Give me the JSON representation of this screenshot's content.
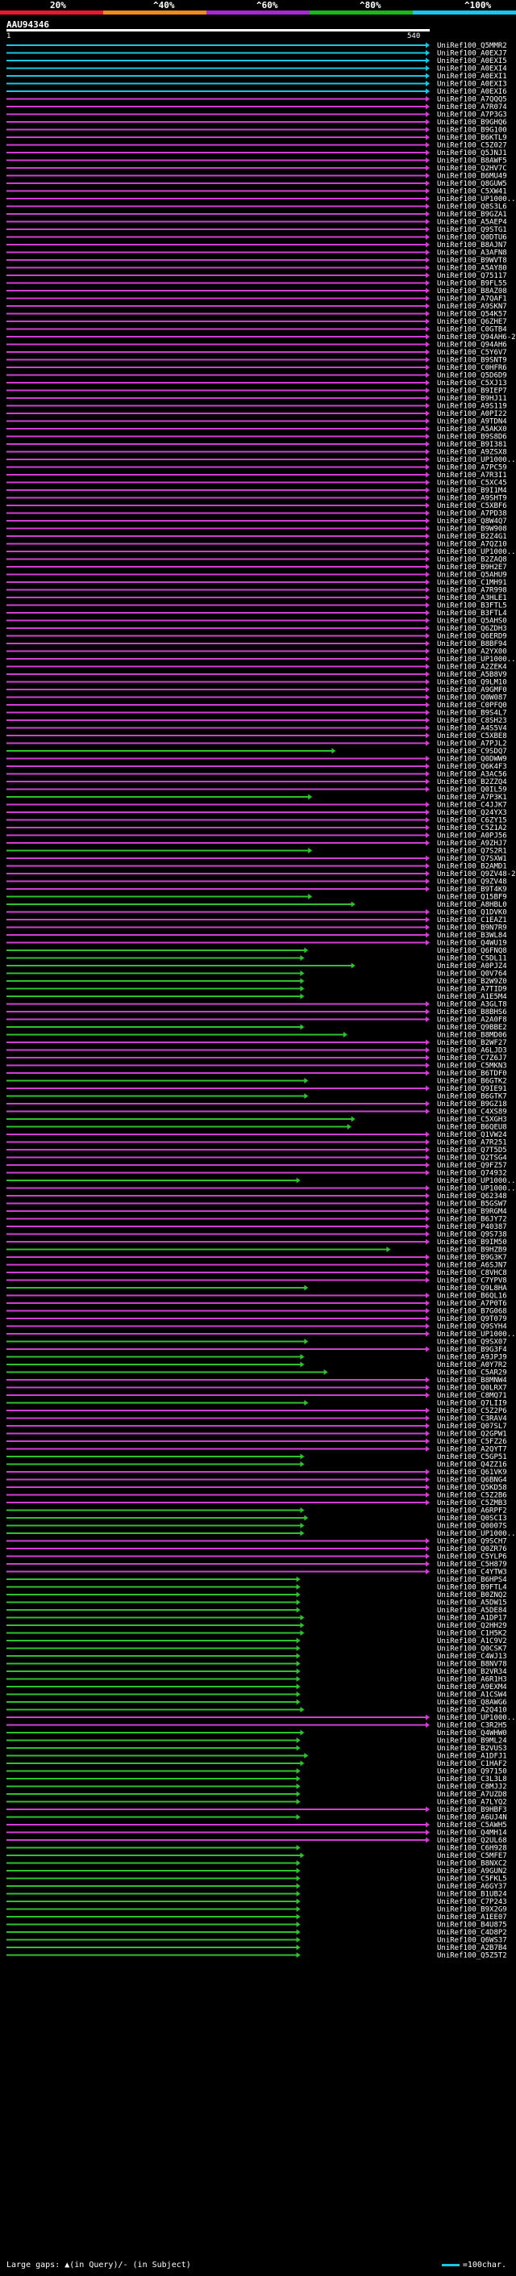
{
  "scale": {
    "labels": [
      "20%",
      "^40%",
      "^60%",
      "^80%",
      "^100%"
    ],
    "colors": [
      "#e8192c",
      "#f08a1e",
      "#a42bd4",
      "#18b818",
      "#18c8e8"
    ]
  },
  "query": {
    "title": "AAU94346",
    "start": "1",
    "end": "540"
  },
  "colors": {
    "cyan": "#18c8e0",
    "magenta": "#d040d0",
    "green": "#30c030"
  },
  "hits": [
    [
      "UniRef100_Q5MMR2",
      "c",
      540
    ],
    [
      "UniRef100_A0EXJ7",
      "c",
      540
    ],
    [
      "UniRef100_A0EXI5",
      "c",
      540
    ],
    [
      "UniRef100_A0EXI4",
      "c",
      540
    ],
    [
      "UniRef100_A0EXI1",
      "c",
      540
    ],
    [
      "UniRef100_A0EXI3",
      "c",
      540
    ],
    [
      "UniRef100_A0EXI6",
      "c",
      540
    ],
    [
      "UniRef100_A7QQQ5",
      "m",
      540
    ],
    [
      "UniRef100_A7R074",
      "m",
      540
    ],
    [
      "UniRef100_A7P3G3",
      "m",
      540
    ],
    [
      "UniRef100_B9GHQ6",
      "m",
      540
    ],
    [
      "UniRef100_B9G100",
      "m",
      540
    ],
    [
      "UniRef100_B6KTL9",
      "m",
      540
    ],
    [
      "UniRef100_C5Z027",
      "m",
      540
    ],
    [
      "UniRef100_Q5JNJ1",
      "m",
      540
    ],
    [
      "UniRef100_B8AWF5",
      "m",
      540
    ],
    [
      "UniRef100_Q2HV7C",
      "m",
      540
    ],
    [
      "UniRef100_B6MU49",
      "m",
      540
    ],
    [
      "UniRef100_Q8GUW5",
      "m",
      540
    ],
    [
      "UniRef100_C5XW41",
      "m",
      540
    ],
    [
      "UniRef100_UP1000...",
      "m",
      540
    ],
    [
      "UniRef100_Q8S3L6",
      "m",
      540
    ],
    [
      "UniRef100_B9GZA1",
      "m",
      540
    ],
    [
      "UniRef100_A5AEP4",
      "m",
      540
    ],
    [
      "UniRef100_Q9STG1",
      "m",
      540
    ],
    [
      "UniRef100_Q0DTU6",
      "m",
      540
    ],
    [
      "UniRef100_B8AJN7",
      "m",
      540
    ],
    [
      "UniRef100_A3AFN8",
      "m",
      540
    ],
    [
      "UniRef100_B9WVT8",
      "m",
      540
    ],
    [
      "UniRef100_A5AY80",
      "m",
      540
    ],
    [
      "UniRef100_Q75117",
      "m",
      540
    ],
    [
      "UniRef100_B9FL55",
      "m",
      540
    ],
    [
      "UniRef100_B8AZ08",
      "m",
      540
    ],
    [
      "UniRef100_A7QAF1",
      "m",
      540
    ],
    [
      "UniRef100_A9SKN7",
      "m",
      540
    ],
    [
      "UniRef100_Q54K57",
      "m",
      540
    ],
    [
      "UniRef100_Q6ZHE7",
      "m",
      540
    ],
    [
      "UniRef100_C0GTB4",
      "m",
      540
    ],
    [
      "UniRef100_Q94AH6-2",
      "m",
      540
    ],
    [
      "UniRef100_Q94AH6",
      "m",
      540
    ],
    [
      "UniRef100_C5Y6V7",
      "m",
      540
    ],
    [
      "UniRef100_B9SNT9",
      "m",
      540
    ],
    [
      "UniRef100_C0HFR6",
      "m",
      540
    ],
    [
      "UniRef100_Q5D6D9",
      "m",
      540
    ],
    [
      "UniRef100_C5XJ13",
      "m",
      540
    ],
    [
      "UniRef100_B9IEP7",
      "m",
      540
    ],
    [
      "UniRef100_B9HJ11",
      "m",
      540
    ],
    [
      "UniRef100_A9S119",
      "m",
      540
    ],
    [
      "UniRef100_A0PI22",
      "m",
      540
    ],
    [
      "UniRef100_A9TDN4",
      "m",
      540
    ],
    [
      "UniRef100_A5AKX0",
      "m",
      540
    ],
    [
      "UniRef100_B9S8D6",
      "m",
      540
    ],
    [
      "UniRef100_B9I381",
      "m",
      540
    ],
    [
      "UniRef100_A9ZSX8",
      "m",
      540
    ],
    [
      "UniRef100_UP1000...",
      "m",
      540
    ],
    [
      "UniRef100_A7PC59",
      "m",
      540
    ],
    [
      "UniRef100_A7R3I1",
      "m",
      540
    ],
    [
      "UniRef100_C5XC45",
      "m",
      540
    ],
    [
      "UniRef100_B9I1M4",
      "m",
      540
    ],
    [
      "UniRef100_A9SHT9",
      "m",
      540
    ],
    [
      "UniRef100_C5XBF6",
      "m",
      540
    ],
    [
      "UniRef100_A7PD38",
      "m",
      540
    ],
    [
      "UniRef100_Q8W4Q7",
      "m",
      540
    ],
    [
      "UniRef100_B9W908",
      "m",
      540
    ],
    [
      "UniRef100_B2Z4G1",
      "m",
      540
    ],
    [
      "UniRef100_A7QZ10",
      "m",
      540
    ],
    [
      "UniRef100_UP1000...",
      "m",
      540
    ],
    [
      "UniRef100_B2ZAQ8",
      "m",
      540
    ],
    [
      "UniRef100_B9H2E7",
      "m",
      540
    ],
    [
      "UniRef100_Q5AHU9",
      "m",
      540
    ],
    [
      "UniRef100_C1MH91",
      "m",
      540
    ],
    [
      "UniRef100_A7R998",
      "m",
      540
    ],
    [
      "UniRef100_A3HLE1",
      "m",
      540
    ],
    [
      "UniRef100_B3FTL5",
      "m",
      540
    ],
    [
      "UniRef100_B3FTL4",
      "m",
      540
    ],
    [
      "UniRef100_Q5AHS0",
      "m",
      540
    ],
    [
      "UniRef100_Q6ZDH3",
      "m",
      540
    ],
    [
      "UniRef100_Q6ERD9",
      "m",
      540
    ],
    [
      "UniRef100_B8BF94",
      "m",
      540
    ],
    [
      "UniRef100_A2YX00",
      "m",
      540
    ],
    [
      "UniRef100_UP1000...",
      "m",
      540
    ],
    [
      "UniRef100_A2ZEK4",
      "m",
      540
    ],
    [
      "UniRef100_A5B8V9",
      "m",
      540
    ],
    [
      "UniRef100_Q9LM10",
      "m",
      540
    ],
    [
      "UniRef100_A9GMF0",
      "m",
      540
    ],
    [
      "UniRef100_Q0W087",
      "m",
      540
    ],
    [
      "UniRef100_C0PFQ0",
      "m",
      540
    ],
    [
      "UniRef100_B9S4L7",
      "m",
      540
    ],
    [
      "UniRef100_C8SH23",
      "m",
      540
    ],
    [
      "UniRef100_A4S5V4",
      "m",
      540
    ],
    [
      "UniRef100_C5XBE8",
      "m",
      540
    ],
    [
      "UniRef100_A7PJL2",
      "m",
      540
    ],
    [
      "UniRef100_C9SDQ7",
      "g",
      420
    ],
    [
      "UniRef100_Q0DWW9",
      "m",
      540
    ],
    [
      "UniRef100_Q6K4F3",
      "m",
      540
    ],
    [
      "UniRef100_A3AC56",
      "m",
      540
    ],
    [
      "UniRef100_B2ZZQ4",
      "m",
      540
    ],
    [
      "UniRef100_Q0IL59",
      "m",
      540
    ],
    [
      "UniRef100_A7P3K1",
      "g",
      390
    ],
    [
      "UniRef100_C4JJK7",
      "m",
      540
    ],
    [
      "UniRef100_Q24YX3",
      "m",
      540
    ],
    [
      "UniRef100_C6ZY15",
      "m",
      540
    ],
    [
      "UniRef100_C5Z1A2",
      "m",
      540
    ],
    [
      "UniRef100_A0PJ56",
      "m",
      540
    ],
    [
      "UniRef100_A9ZHJ7",
      "m",
      540
    ],
    [
      "UniRef100_Q7S2R1",
      "g",
      390
    ],
    [
      "UniRef100_Q7SXW1",
      "m",
      540
    ],
    [
      "UniRef100_B2AMD1",
      "m",
      540
    ],
    [
      "UniRef100_Q9ZV48-2",
      "m",
      540
    ],
    [
      "UniRef100_Q9ZV48",
      "m",
      540
    ],
    [
      "UniRef100_B9T4K9",
      "m",
      540
    ],
    [
      "UniRef100_Q15BF9",
      "g",
      390
    ],
    [
      "UniRef100_A8HBL0",
      "g",
      445
    ],
    [
      "UniRef100_Q1DVK0",
      "m",
      540
    ],
    [
      "UniRef100_C1EAZ1",
      "m",
      540
    ],
    [
      "UniRef100_B9N7R9",
      "m",
      540
    ],
    [
      "UniRef100_B3WL84",
      "m",
      540
    ],
    [
      "UniRef100_Q4WU19",
      "m",
      540
    ],
    [
      "UniRef100_Q6FNQ8",
      "g",
      385
    ],
    [
      "UniRef100_C5DL11",
      "g",
      380
    ],
    [
      "UniRef100_A0PJZ4",
      "g",
      445
    ],
    [
      "UniRef100_Q0V764",
      "g",
      380
    ],
    [
      "UniRef100_B2W9Z0",
      "g",
      380
    ],
    [
      "UniRef100_A7TID9",
      "g",
      380
    ],
    [
      "UniRef100_A1E5M4",
      "g",
      380
    ],
    [
      "UniRef100_A3GLT8",
      "m",
      540
    ],
    [
      "UniRef100_B8BHS6",
      "m",
      540
    ],
    [
      "UniRef100_A2A0F8",
      "m",
      540
    ],
    [
      "UniRef100_Q9BBE2",
      "g",
      380
    ],
    [
      "UniRef100_B8MD06",
      "g",
      435
    ],
    [
      "UniRef100_B2WF27",
      "m",
      540
    ],
    [
      "UniRef100_A6LJD3",
      "m",
      540
    ],
    [
      "UniRef100_C7Z6J7",
      "m",
      540
    ],
    [
      "UniRef100_C5MKN3",
      "m",
      540
    ],
    [
      "UniRef100_B6TDF0",
      "m",
      540
    ],
    [
      "UniRef100_B6GTK2",
      "g",
      385
    ],
    [
      "UniRef100_Q9IE91",
      "m",
      540
    ],
    [
      "UniRef100_B6GTK7",
      "g",
      385
    ],
    [
      "UniRef100_B9GZ18",
      "m",
      540
    ],
    [
      "UniRef100_C4XS89",
      "m",
      540
    ],
    [
      "UniRef100_C5XGH3",
      "g",
      445
    ],
    [
      "UniRef100_B6QEU8",
      "g",
      440
    ],
    [
      "UniRef100_Q1VW24",
      "m",
      540
    ],
    [
      "UniRef100_A7R251",
      "m",
      540
    ],
    [
      "UniRef100_Q7T5D5",
      "m",
      540
    ],
    [
      "UniRef100_Q2TSG4",
      "m",
      540
    ],
    [
      "UniRef100_Q9FZ57",
      "m",
      540
    ],
    [
      "UniRef100_Q74932",
      "m",
      540
    ],
    [
      "UniRef100_UP1000...",
      "g",
      375
    ],
    [
      "UniRef100_UP1000...",
      "m",
      540
    ],
    [
      "UniRef100_Q62348",
      "m",
      540
    ],
    [
      "UniRef100_B5GSW7",
      "m",
      540
    ],
    [
      "UniRef100_B9RGM4",
      "m",
      540
    ],
    [
      "UniRef100_B6JY72",
      "m",
      540
    ],
    [
      "UniRef100_P40387",
      "m",
      540
    ],
    [
      "UniRef100_Q9S738",
      "m",
      540
    ],
    [
      "UniRef100_B9IM50",
      "m",
      540
    ],
    [
      "UniRef100_B9HZB9",
      "g",
      490
    ],
    [
      "UniRef100_B9G3K7",
      "m",
      540
    ],
    [
      "UniRef100_A6SJN7",
      "m",
      540
    ],
    [
      "UniRef100_C8VHC8",
      "m",
      540
    ],
    [
      "UniRef100_C7YPV8",
      "m",
      540
    ],
    [
      "UniRef100_Q9L8HA",
      "g",
      385
    ],
    [
      "UniRef100_B6QL16",
      "m",
      540
    ],
    [
      "UniRef100_A7P0T6",
      "m",
      540
    ],
    [
      "UniRef100_B7G068",
      "m",
      540
    ],
    [
      "UniRef100_Q9T079",
      "m",
      540
    ],
    [
      "UniRef100_Q9SYH4",
      "m",
      540
    ],
    [
      "UniRef100_UP1000...",
      "m",
      540
    ],
    [
      "UniRef100_Q9SX07",
      "g",
      385
    ],
    [
      "UniRef100_B9G3F4",
      "m",
      540
    ],
    [
      "UniRef100_A9JPJ9",
      "g",
      380
    ],
    [
      "UniRef100_A0Y7R2",
      "g",
      380
    ],
    [
      "UniRef100_C5AR29",
      "g",
      410
    ],
    [
      "UniRef100_B8MNW4",
      "m",
      540
    ],
    [
      "UniRef100_Q0LRX7",
      "m",
      540
    ],
    [
      "UniRef100_C8MQ71",
      "m",
      540
    ],
    [
      "UniRef100_Q7LII9",
      "g",
      385
    ],
    [
      "UniRef100_C5Z2P6",
      "m",
      540
    ],
    [
      "UniRef100_C3RAV4",
      "m",
      540
    ],
    [
      "UniRef100_Q07SL7",
      "m",
      540
    ],
    [
      "UniRef100_Q2GPW1",
      "m",
      540
    ],
    [
      "UniRef100_C5FZ26",
      "m",
      540
    ],
    [
      "UniRef100_A2QYT7",
      "m",
      540
    ],
    [
      "UniRef100_C5GP51",
      "g",
      380
    ],
    [
      "UniRef100_Q4ZZ16",
      "g",
      380
    ],
    [
      "UniRef100_Q61VK9",
      "m",
      540
    ],
    [
      "UniRef100_Q6BNG4",
      "m",
      540
    ],
    [
      "UniRef100_Q5KD58",
      "m",
      540
    ],
    [
      "UniRef100_C5Z2B6",
      "m",
      540
    ],
    [
      "UniRef100_C5ZMB3",
      "m",
      540
    ],
    [
      "UniRef100_A6RPF2",
      "g",
      380
    ],
    [
      "UniRef100_Q0SCI3",
      "g",
      385
    ],
    [
      "UniRef100_Q0007S",
      "g",
      380
    ],
    [
      "UniRef100_UP1000...",
      "g",
      380
    ],
    [
      "UniRef100_Q9SCH7",
      "m",
      540
    ],
    [
      "UniRef100_Q0ZR76",
      "m",
      540
    ],
    [
      "UniRef100_C5YLP6",
      "m",
      540
    ],
    [
      "UniRef100_C5H879",
      "m",
      540
    ],
    [
      "UniRef100_C4YTW3",
      "m",
      540
    ],
    [
      "UniRef100_B6HPS4",
      "g",
      375
    ],
    [
      "UniRef100_B9FTL4",
      "g",
      375
    ],
    [
      "UniRef100_B0ZNQ2",
      "g",
      375
    ],
    [
      "UniRef100_A5DW15",
      "g",
      375
    ],
    [
      "UniRef100_A5DE84",
      "g",
      375
    ],
    [
      "UniRef100_A1DP17",
      "g",
      380
    ],
    [
      "UniRef100_Q2HH29",
      "g",
      380
    ],
    [
      "UniRef100_C1H5K2",
      "g",
      380
    ],
    [
      "UniRef100_A1C9V2",
      "g",
      375
    ],
    [
      "UniRef100_Q0CSK7",
      "g",
      375
    ],
    [
      "UniRef100_C4WJ13",
      "g",
      375
    ],
    [
      "UniRef100_B8NV78",
      "g",
      375
    ],
    [
      "UniRef100_B2VR34",
      "g",
      375
    ],
    [
      "UniRef100_A6R1H3",
      "g",
      375
    ],
    [
      "UniRef100_A9EXM4",
      "g",
      375
    ],
    [
      "UniRef100_A1CSW4",
      "g",
      375
    ],
    [
      "UniRef100_Q8AWG6",
      "g",
      375
    ],
    [
      "UniRef100_A2Q410",
      "g",
      380
    ],
    [
      "UniRef100_UP1000...",
      "m",
      540
    ],
    [
      "UniRef100_C3R2H5",
      "m",
      540
    ],
    [
      "UniRef100_Q4WHW0",
      "g",
      380
    ],
    [
      "UniRef100_B9ML24",
      "g",
      375
    ],
    [
      "UniRef100_B2VUS3",
      "g",
      375
    ],
    [
      "UniRef100_A1DFJ1",
      "g",
      385
    ],
    [
      "UniRef100_C1HAF2",
      "g",
      380
    ],
    [
      "UniRef100_Q97150",
      "g",
      375
    ],
    [
      "UniRef100_C3L3L8",
      "g",
      375
    ],
    [
      "UniRef100_C8MJJ2",
      "g",
      375
    ],
    [
      "UniRef100_A7UZD8",
      "g",
      375
    ],
    [
      "UniRef100_A7LYQ2",
      "g",
      375
    ],
    [
      "UniRef100_B9HBF3",
      "m",
      540
    ],
    [
      "UniRef100_A6UJ4N",
      "g",
      375
    ],
    [
      "UniRef100_C5AWH5",
      "m",
      540
    ],
    [
      "UniRef100_Q4MH14",
      "m",
      540
    ],
    [
      "UniRef100_Q2UL68",
      "m",
      540
    ],
    [
      "UniRef100_C6H928",
      "g",
      375
    ],
    [
      "UniRef100_C5MFE7",
      "g",
      380
    ],
    [
      "UniRef100_B8NXC2",
      "g",
      375
    ],
    [
      "UniRef100_A9GUN2",
      "g",
      375
    ],
    [
      "UniRef100_C5FKL5",
      "g",
      375
    ],
    [
      "UniRef100_A6GY37",
      "g",
      375
    ],
    [
      "UniRef100_B1UB24",
      "g",
      375
    ],
    [
      "UniRef100_C7P243",
      "g",
      375
    ],
    [
      "UniRef100_B9X2G9",
      "g",
      375
    ],
    [
      "UniRef100_A1EE07",
      "g",
      375
    ],
    [
      "UniRef100_B4U875",
      "g",
      375
    ],
    [
      "UniRef100_C4D8P2",
      "g",
      375
    ],
    [
      "UniRef100_Q6WS37",
      "g",
      375
    ],
    [
      "UniRef100_A2B7B4",
      "g",
      375
    ],
    [
      "UniRef100_Q5Z5T2",
      "g",
      375
    ]
  ],
  "legend": {
    "text": "Large gaps: ▲(in Query)/- (in Subject)",
    "scale_text": "=100char."
  }
}
